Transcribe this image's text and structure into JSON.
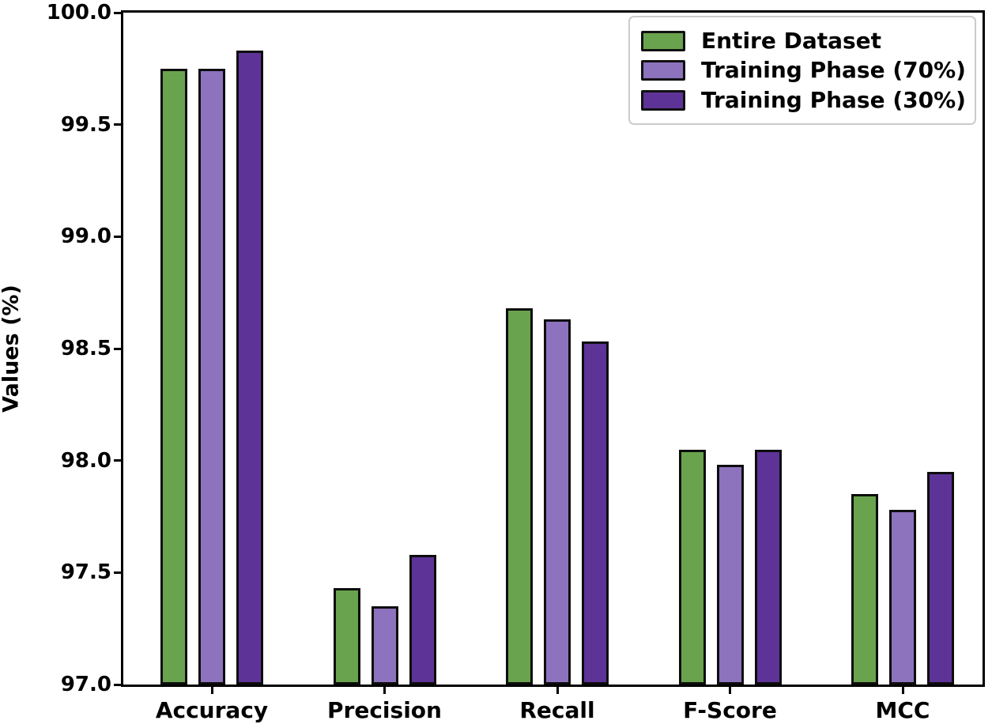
{
  "chart_data": {
    "type": "bar",
    "title": "",
    "ylabel": "Values (%)",
    "xlabel": "",
    "ylim": [
      97.0,
      100.0
    ],
    "yticks": [
      97.0,
      97.5,
      98.0,
      98.5,
      99.0,
      99.5,
      100.0
    ],
    "ytick_labels": [
      "97.0",
      "97.5",
      "98.0",
      "98.5",
      "99.0",
      "99.5",
      "100.0"
    ],
    "categories": [
      "Accuracy",
      "Precision",
      "Recall",
      "F-Score",
      "MCC"
    ],
    "series": [
      {
        "name": "Entire Dataset",
        "color": "#6aa34d",
        "values": [
          99.75,
          97.43,
          98.68,
          98.05,
          97.85
        ]
      },
      {
        "name": "Training Phase (70%)",
        "color": "#8d72bd",
        "values": [
          99.75,
          97.35,
          98.63,
          97.98,
          97.78
        ]
      },
      {
        "name": "Training Phase (30%)",
        "color": "#5e3397",
        "values": [
          99.83,
          97.58,
          98.53,
          98.05,
          97.95
        ]
      }
    ],
    "grid": false,
    "legend_position": "upper right",
    "colors": {
      "bar_edge": "#0d0d0d",
      "axis": "#000000",
      "legend_edge": "#cccccc",
      "background": "#ffffff"
    }
  }
}
